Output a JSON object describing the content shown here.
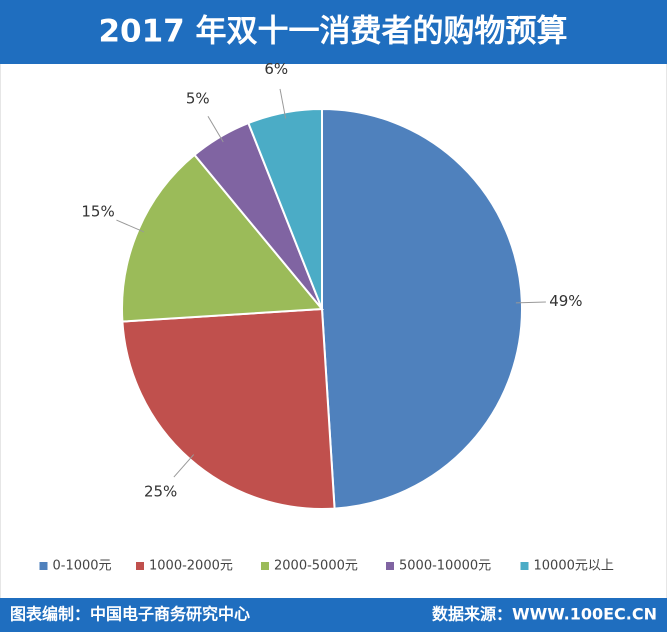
{
  "chart_data": {
    "type": "pie",
    "title": "2017 年双十一消费者的购物预算",
    "categories": [
      "0-1000元",
      "1000-2000元",
      "2000-5000元",
      "5000-10000元",
      "10000元以上"
    ],
    "values": [
      49,
      25,
      15,
      5,
      6
    ],
    "value_labels": [
      "49%",
      "25%",
      "15%",
      "5%",
      "6%"
    ],
    "colors": [
      "#4f81bd",
      "#c0504d",
      "#9bbb59",
      "#8064a2",
      "#4bacc6"
    ],
    "legend": "bottom",
    "note": "图表编制：中国电子商务研究中心",
    "source": "数据来源：WWW.100EC.CN"
  }
}
